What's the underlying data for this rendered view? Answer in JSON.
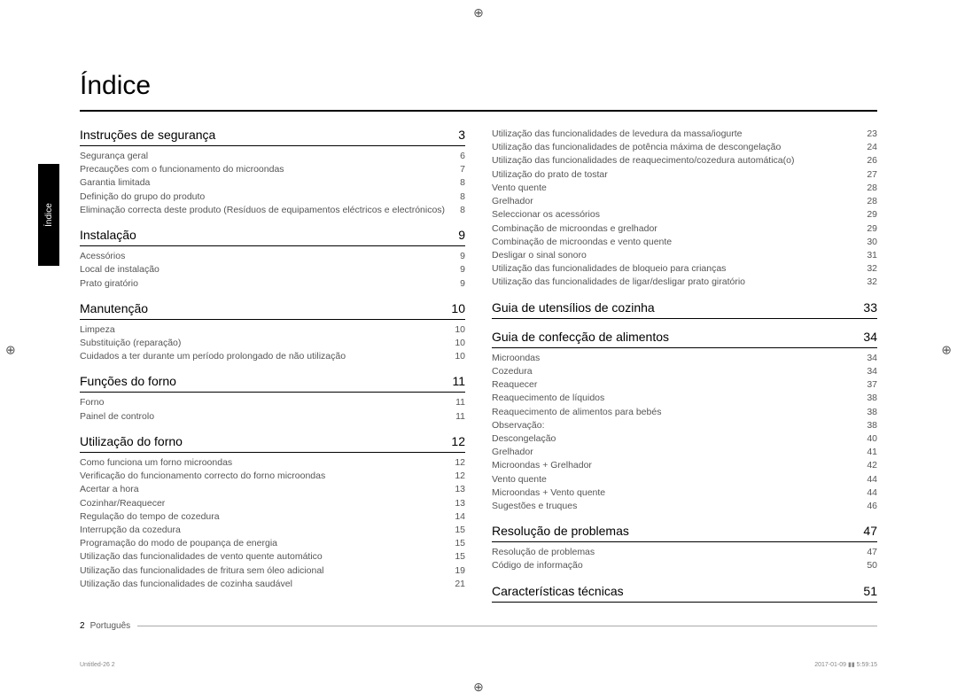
{
  "title": "Índice",
  "side_tab": "Índice",
  "reg_glyph": "⊕",
  "footer": {
    "page_num": "2",
    "lang": "Português"
  },
  "meta": {
    "left": "Untitled-26   2",
    "right": "2017-01-09   ▮▮ 5:59:15"
  },
  "left_sections": [
    {
      "title": "Instruções de segurança",
      "page": "3",
      "entries": [
        {
          "t": "Segurança geral",
          "p": "6"
        },
        {
          "t": "Precauções com o funcionamento do microondas",
          "p": "7"
        },
        {
          "t": "Garantia limitada",
          "p": "8"
        },
        {
          "t": "Definição do grupo do produto",
          "p": "8"
        },
        {
          "t": "Eliminação correcta deste produto (Resíduos de equipamentos eléctricos e electrónicos)",
          "p": "8"
        }
      ]
    },
    {
      "title": "Instalação",
      "page": "9",
      "entries": [
        {
          "t": "Acessórios",
          "p": "9"
        },
        {
          "t": "Local de instalação",
          "p": "9"
        },
        {
          "t": "Prato giratório",
          "p": "9"
        }
      ]
    },
    {
      "title": "Manutenção",
      "page": "10",
      "entries": [
        {
          "t": "Limpeza",
          "p": "10"
        },
        {
          "t": "Substituição (reparação)",
          "p": "10"
        },
        {
          "t": "Cuidados a ter durante um período prolongado de não utilização",
          "p": "10"
        }
      ]
    },
    {
      "title": "Funções do forno",
      "page": "11",
      "entries": [
        {
          "t": "Forno",
          "p": "11"
        },
        {
          "t": "Painel de controlo",
          "p": "11"
        }
      ]
    },
    {
      "title": "Utilização do forno",
      "page": "12",
      "entries": [
        {
          "t": "Como funciona um forno microondas",
          "p": "12"
        },
        {
          "t": "Verificação do funcionamento correcto do forno microondas",
          "p": "12"
        },
        {
          "t": "Acertar a hora",
          "p": "13"
        },
        {
          "t": "Cozinhar/Reaquecer",
          "p": "13"
        },
        {
          "t": "Regulação do tempo de cozedura",
          "p": "14"
        },
        {
          "t": "Interrupção da cozedura",
          "p": "15"
        },
        {
          "t": "Programação do modo de poupança de energia",
          "p": "15"
        },
        {
          "t": "Utilização das funcionalidades de vento quente automático",
          "p": "15"
        },
        {
          "t": "Utilização das funcionalidades de fritura sem óleo adicional",
          "p": "19"
        },
        {
          "t": "Utilização das funcionalidades de cozinha saudável",
          "p": "21"
        }
      ]
    }
  ],
  "right_top_entries": [
    {
      "t": "Utilização das funcionalidades de levedura da massa/iogurte",
      "p": "23"
    },
    {
      "t": "Utilização das funcionalidades de potência máxima de descongelação",
      "p": "24"
    },
    {
      "t": "Utilização das funcionalidades de reaquecimento/cozedura automática(o)",
      "p": "26"
    },
    {
      "t": "Utilização do prato de tostar",
      "p": "27"
    },
    {
      "t": "Vento quente",
      "p": "28"
    },
    {
      "t": "Grelhador",
      "p": "28"
    },
    {
      "t": "Seleccionar os acessórios",
      "p": "29"
    },
    {
      "t": "Combinação de microondas e grelhador",
      "p": "29"
    },
    {
      "t": "Combinação de microondas e vento quente",
      "p": "30"
    },
    {
      "t": "Desligar o sinal sonoro",
      "p": "31"
    },
    {
      "t": "Utilização das funcionalidades de bloqueio para crianças",
      "p": "32"
    },
    {
      "t": "Utilização das funcionalidades de ligar/desligar prato giratório",
      "p": "32"
    }
  ],
  "right_sections": [
    {
      "title": "Guia de utensílios de cozinha",
      "page": "33",
      "entries": []
    },
    {
      "title": "Guia de confecção de alimentos",
      "page": "34",
      "entries": [
        {
          "t": "Microondas",
          "p": "34"
        },
        {
          "t": "Cozedura",
          "p": "34"
        },
        {
          "t": "Reaquecer",
          "p": "37"
        },
        {
          "t": "Reaquecimento de líquidos",
          "p": "38"
        },
        {
          "t": "Reaquecimento de alimentos para bebés",
          "p": "38"
        },
        {
          "t": "Observação:",
          "p": "38"
        },
        {
          "t": "Descongelação",
          "p": "40"
        },
        {
          "t": "Grelhador",
          "p": "41"
        },
        {
          "t": "Microondas + Grelhador",
          "p": "42"
        },
        {
          "t": "Vento quente",
          "p": "44"
        },
        {
          "t": "Microondas + Vento quente",
          "p": "44"
        },
        {
          "t": "Sugestões e truques",
          "p": "46"
        }
      ]
    },
    {
      "title": "Resolução de problemas",
      "page": "47",
      "entries": [
        {
          "t": "Resolução de problemas",
          "p": "47"
        },
        {
          "t": "Código de informação",
          "p": "50"
        }
      ]
    },
    {
      "title": "Características técnicas",
      "page": "51",
      "entries": []
    }
  ]
}
